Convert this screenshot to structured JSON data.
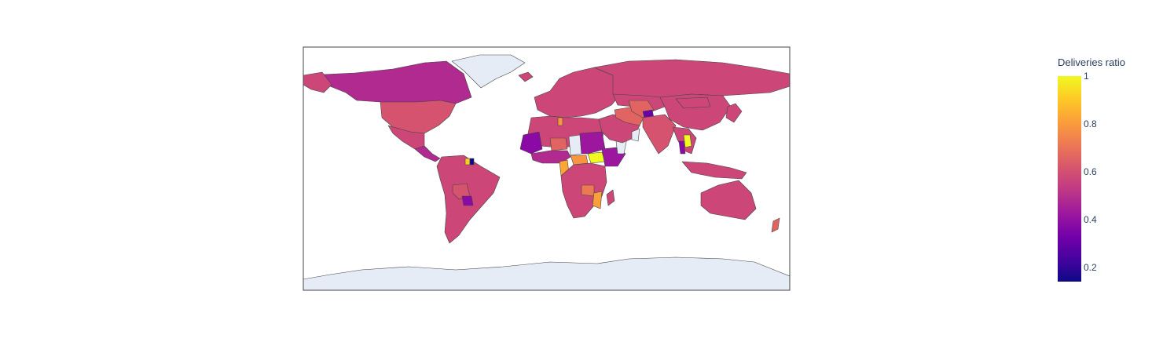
{
  "map": {
    "projection": "equirectangular",
    "land_no_data_color": "#e5ecf6",
    "border_color": "#444444",
    "frame_color": "#444444"
  },
  "colorbar": {
    "title": "Deliveries ratio",
    "min": 0.14,
    "max": 1.0,
    "ticks": [
      {
        "value": 1,
        "label": "1"
      },
      {
        "value": 0.8,
        "label": "0.8"
      },
      {
        "value": 0.6,
        "label": "0.6"
      },
      {
        "value": 0.4,
        "label": "0.4"
      },
      {
        "value": 0.2,
        "label": "0.2"
      }
    ],
    "colorscale": [
      "#0d0887",
      "#46039f",
      "#7201a8",
      "#9c179e",
      "#bd3786",
      "#d8576b",
      "#ed7953",
      "#fb9f3a",
      "#fdca26",
      "#f0f921"
    ]
  },
  "chart_data": {
    "type": "choropleth",
    "title": "",
    "color_label": "Deliveries ratio",
    "regions": [
      {
        "region": "Canada",
        "lon": -100,
        "lat": 60,
        "value": 0.5
      },
      {
        "region": "United States",
        "lon": -98,
        "lat": 40,
        "value": 0.58
      },
      {
        "region": "Mexico",
        "lon": -102,
        "lat": 23,
        "value": 0.57
      },
      {
        "region": "Guatemala",
        "lon": -90,
        "lat": 15,
        "value": 0.45
      },
      {
        "region": "Colombia",
        "lon": -73,
        "lat": 4,
        "value": 0.55
      },
      {
        "region": "Venezuela",
        "lon": -66,
        "lat": 7,
        "value": 0.56
      },
      {
        "region": "Suriname",
        "lon": -56,
        "lat": 4,
        "value": 0.92
      },
      {
        "region": "French Guiana",
        "lon": -53,
        "lat": 4,
        "value": 0.14
      },
      {
        "region": "Peru",
        "lon": -75,
        "lat": -9,
        "value": 0.55
      },
      {
        "region": "Brazil",
        "lon": -52,
        "lat": -10,
        "value": 0.56
      },
      {
        "region": "Bolivia",
        "lon": -64,
        "lat": -17,
        "value": 0.62
      },
      {
        "region": "Paraguay",
        "lon": -58,
        "lat": -23,
        "value": 0.42
      },
      {
        "region": "Argentina",
        "lon": -64,
        "lat": -34,
        "value": 0.56
      },
      {
        "region": "Chile",
        "lon": -71,
        "lat": -30,
        "value": 0.58
      },
      {
        "region": "Greenland",
        "lon": -42,
        "lat": 72,
        "value": null
      },
      {
        "region": "Iceland",
        "lon": -19,
        "lat": 65,
        "value": 0.57
      },
      {
        "region": "Spain",
        "lon": -4,
        "lat": 40,
        "value": 0.56
      },
      {
        "region": "France",
        "lon": 2,
        "lat": 46,
        "value": 0.57
      },
      {
        "region": "Germany",
        "lon": 10,
        "lat": 51,
        "value": 0.58
      },
      {
        "region": "Italy",
        "lon": 12,
        "lat": 43,
        "value": 0.55
      },
      {
        "region": "Ukraine",
        "lon": 31,
        "lat": 49,
        "value": 0.56
      },
      {
        "region": "Russia",
        "lon": 95,
        "lat": 61,
        "value": 0.57
      },
      {
        "region": "Morocco",
        "lon": -7,
        "lat": 31,
        "value": 0.57
      },
      {
        "region": "Algeria",
        "lon": 3,
        "lat": 27,
        "value": 0.56
      },
      {
        "region": "Libya",
        "lon": 17,
        "lat": 27,
        "value": 0.54
      },
      {
        "region": "Egypt",
        "lon": 30,
        "lat": 26,
        "value": 0.58
      },
      {
        "region": "Tunisia",
        "lon": 9,
        "lat": 34,
        "value": 0.78
      },
      {
        "region": "Mali",
        "lon": -3,
        "lat": 17,
        "value": 0.57
      },
      {
        "region": "Mauritania",
        "lon": -10,
        "lat": 20,
        "value": 0.42
      },
      {
        "region": "Senegal",
        "lon": -14.5,
        "lat": 14.5,
        "value": 0.35
      },
      {
        "region": "Niger",
        "lon": 9,
        "lat": 17,
        "value": 0.66
      },
      {
        "region": "Chad",
        "lon": 18,
        "lat": 15,
        "value": null
      },
      {
        "region": "Sudan",
        "lon": 30,
        "lat": 15,
        "value": 0.45
      },
      {
        "region": "South Sudan",
        "lon": 30,
        "lat": 7,
        "value": 0.97
      },
      {
        "region": "Ethiopia",
        "lon": 40,
        "lat": 9,
        "value": 0.46
      },
      {
        "region": "Somalia",
        "lon": 46,
        "lat": 5,
        "value": null
      },
      {
        "region": "Nigeria",
        "lon": 8,
        "lat": 9,
        "value": 0.6
      },
      {
        "region": "Cameroon",
        "lon": 12,
        "lat": 5,
        "value": 0.88
      },
      {
        "region": "Central African Republic",
        "lon": 21,
        "lat": 7,
        "value": 0.82
      },
      {
        "region": "DR Congo",
        "lon": 24,
        "lat": -3,
        "value": 0.55
      },
      {
        "region": "Angola",
        "lon": 18,
        "lat": -12,
        "value": 0.58
      },
      {
        "region": "Tanzania",
        "lon": 35,
        "lat": -6,
        "value": 0.62
      },
      {
        "region": "Zambia",
        "lon": 27,
        "lat": -14,
        "value": 0.7
      },
      {
        "region": "Mozambique",
        "lon": 35,
        "lat": -17,
        "value": 0.8
      },
      {
        "region": "Namibia",
        "lon": 18,
        "lat": -22,
        "value": 0.56
      },
      {
        "region": "Botswana",
        "lon": 24,
        "lat": -22,
        "value": 0.58
      },
      {
        "region": "South Africa",
        "lon": 24,
        "lat": -29,
        "value": 0.55
      },
      {
        "region": "Madagascar",
        "lon": 47,
        "lat": -19,
        "value": 0.58
      },
      {
        "region": "Saudi Arabia",
        "lon": 45,
        "lat": 24,
        "value": 0.56
      },
      {
        "region": "Yemen",
        "lon": 47,
        "lat": 15.5,
        "value": 0.6
      },
      {
        "region": "Oman",
        "lon": 56,
        "lat": 21,
        "value": null
      },
      {
        "region": "Iran",
        "lon": 53,
        "lat": 32,
        "value": 0.63
      },
      {
        "region": "Iraq",
        "lon": 44,
        "lat": 33,
        "value": 0.66
      },
      {
        "region": "Turkey",
        "lon": 35,
        "lat": 39,
        "value": 0.58
      },
      {
        "region": "Kazakhstan",
        "lon": 68,
        "lat": 48,
        "value": 0.56
      },
      {
        "region": "Afghanistan",
        "lon": 66,
        "lat": 34,
        "value": 0.7
      },
      {
        "region": "Tajikistan",
        "lon": 71,
        "lat": 39,
        "value": 0.35
      },
      {
        "region": "Pakistan",
        "lon": 70,
        "lat": 30,
        "value": 0.6
      },
      {
        "region": "India",
        "lon": 79,
        "lat": 22,
        "value": 0.6
      },
      {
        "region": "China",
        "lon": 104,
        "lat": 35,
        "value": 0.56
      },
      {
        "region": "Mongolia",
        "lon": 103,
        "lat": 47,
        "value": 0.58
      },
      {
        "region": "Myanmar",
        "lon": 96,
        "lat": 21,
        "value": 0.55
      },
      {
        "region": "Thailand",
        "lon": 101,
        "lat": 15,
        "value": 0.45
      },
      {
        "region": "Laos",
        "lon": 103,
        "lat": 18,
        "value": 0.97
      },
      {
        "region": "Vietnam",
        "lon": 106,
        "lat": 16,
        "value": 0.56
      },
      {
        "region": "Indonesia",
        "lon": 115,
        "lat": -2,
        "value": 0.57
      },
      {
        "region": "Japan",
        "lon": 138,
        "lat": 37,
        "value": 0.58
      },
      {
        "region": "Australia",
        "lon": 134,
        "lat": -25,
        "value": 0.57
      },
      {
        "region": "New Zealand",
        "lon": 173,
        "lat": -41,
        "value": 0.6
      },
      {
        "region": "Antarctica",
        "lon": 0,
        "lat": -80,
        "value": null
      }
    ]
  }
}
